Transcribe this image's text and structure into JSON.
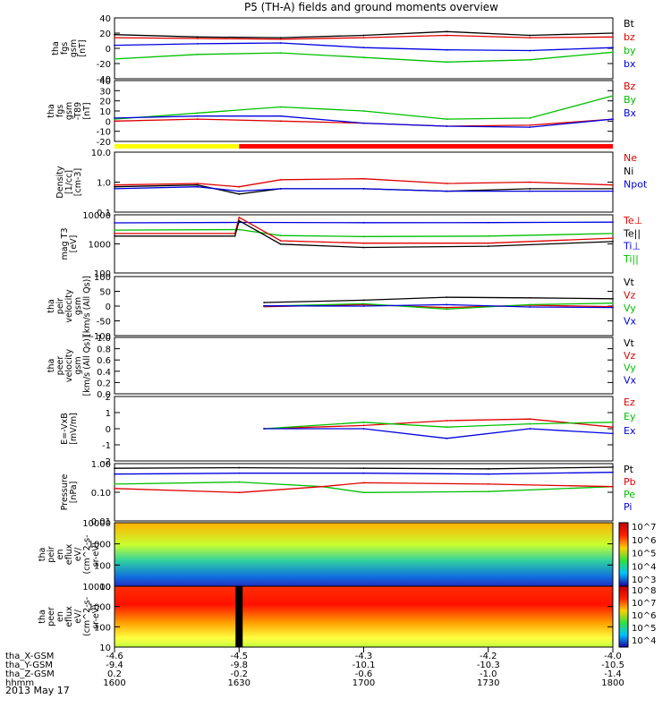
{
  "title": "P5 (TH-A) fields and ground moments overview",
  "date": "2013 May 17",
  "time_axis": {
    "hhmm": [
      "1600",
      "1630",
      "1700",
      "1730",
      "1800"
    ],
    "rows": [
      {
        "label": "tha_X-GSM",
        "values": [
          "-4.6",
          "-4.5",
          "-4.3",
          "-4.2",
          "-4.0"
        ]
      },
      {
        "label": "tha_Y-GSM",
        "values": [
          "-9.4",
          "-9.8",
          "-10.1",
          "-10.3",
          "-10.5"
        ]
      },
      {
        "label": "tha_Z-GSM",
        "values": [
          "0.2",
          "-0.2",
          "-0.6",
          "-1.0",
          "-1.4"
        ]
      },
      {
        "label": "hhmm",
        "values": [
          "1600",
          "1630",
          "1700",
          "1730",
          "1800"
        ]
      }
    ]
  },
  "panels": [
    {
      "id": "fgs",
      "ylabel": [
        "tha",
        "fgs",
        "gsm",
        "[nT]"
      ],
      "ticks": [
        "40",
        "20",
        "0",
        "-20",
        "-40"
      ],
      "legend": [
        {
          "t": "Bt",
          "c": "#000000"
        },
        {
          "t": "bz",
          "c": "#e00000"
        },
        {
          "t": "by",
          "c": "#00c000"
        },
        {
          "t": "bx",
          "c": "#0000e0"
        }
      ]
    },
    {
      "id": "fgs-t89",
      "ylabel": [
        "tha",
        "fgs",
        "gsm",
        "-T89",
        "[nT]"
      ],
      "ticks": [
        "40",
        "30",
        "20",
        "10",
        "0",
        "-10",
        "-20"
      ],
      "legend": [
        {
          "t": "Bz",
          "c": "#e00000"
        },
        {
          "t": "By",
          "c": "#00c000"
        },
        {
          "t": "Bx",
          "c": "#0000e0"
        }
      ]
    },
    {
      "id": "density",
      "ylabel": [
        "Density",
        "[1/cc]",
        "[cm-3]"
      ],
      "ticks": [
        "10.0",
        "1.0",
        "0.1"
      ],
      "legend": [
        {
          "t": "Ne",
          "c": "#e00000"
        },
        {
          "t": "Ni",
          "c": "#000000"
        },
        {
          "t": "Npot",
          "c": "#0000e0"
        }
      ]
    },
    {
      "id": "temp",
      "ylabel": [
        "mag T3",
        "[eV]"
      ],
      "ticks": [
        "10000",
        "1000",
        "100"
      ],
      "legend": [
        {
          "t": "Te⊥",
          "c": "#e00000"
        },
        {
          "t": "Te||",
          "c": "#000000"
        },
        {
          "t": "Ti⊥",
          "c": "#0000e0"
        },
        {
          "t": "Ti||",
          "c": "#00c000"
        }
      ]
    },
    {
      "id": "peir-vel",
      "ylabel": [
        "tha",
        "peir",
        "velocity",
        "gsm",
        "[km/s (All Qs)]"
      ],
      "ticks": [
        "100",
        "50",
        "0",
        "-50",
        "-100"
      ],
      "legend": [
        {
          "t": "Vt",
          "c": "#000000"
        },
        {
          "t": "Vz",
          "c": "#e00000"
        },
        {
          "t": "Vy",
          "c": "#00c000"
        },
        {
          "t": "Vx",
          "c": "#0000e0"
        }
      ]
    },
    {
      "id": "peer-vel",
      "ylabel": [
        "tha",
        "peer",
        "velocity",
        "gsm",
        "[km/s (All Qs)]"
      ],
      "ticks": [
        "1.0",
        "0.8",
        "0.6",
        "0.4",
        "0.2",
        "0.0"
      ],
      "legend": [
        {
          "t": "Vt",
          "c": "#000000"
        },
        {
          "t": "Vz",
          "c": "#e00000"
        },
        {
          "t": "Vy",
          "c": "#00c000"
        },
        {
          "t": "Vx",
          "c": "#0000e0"
        }
      ]
    },
    {
      "id": "efield",
      "ylabel": [
        "E=-VxB",
        "[mV/m]"
      ],
      "ticks": [
        "2",
        "1",
        "0",
        "-1",
        "-2"
      ],
      "legend": [
        {
          "t": "Ez",
          "c": "#e00000"
        },
        {
          "t": "Ey",
          "c": "#00c000"
        },
        {
          "t": "Ex",
          "c": "#0000e0"
        }
      ]
    },
    {
      "id": "pressure",
      "ylabel": [
        "Pressure",
        "[nPa]"
      ],
      "ticks": [
        "1.00",
        "0.10",
        "0.01"
      ],
      "legend": [
        {
          "t": "Pt",
          "c": "#000000"
        },
        {
          "t": "Pb",
          "c": "#e00000"
        },
        {
          "t": "Pe",
          "c": "#00c000"
        },
        {
          "t": "Pi",
          "c": "#0000e0"
        }
      ]
    },
    {
      "id": "peir-spec",
      "ylabel": [
        "tha",
        "peir",
        "en",
        "eflux",
        "eV/",
        "(cm^2-s-",
        "sr-eV)"
      ],
      "ticks": [
        "10000",
        "1000",
        "100",
        "10"
      ],
      "colorbar": [
        "10^7",
        "10^6",
        "10^5",
        "10^4",
        "10^3"
      ]
    },
    {
      "id": "peer-spec",
      "ylabel": [
        "tha",
        "peer",
        "en",
        "eflux",
        "eV/",
        "(cm^2-s-",
        "sr-eV)"
      ],
      "ticks": [
        "10000",
        "1000",
        "100",
        "10"
      ],
      "colorbar": [
        "10^8",
        "10^7",
        "10^6",
        "10^5",
        "10^4"
      ]
    }
  ],
  "chart_data": {
    "type": "line",
    "x_range_hhmm": [
      "1600",
      "1800"
    ],
    "panels": {
      "fgs": {
        "ylim": [
          -40,
          40
        ],
        "series": [
          {
            "name": "Bt",
            "color": "#000000",
            "x": [
              0,
              20,
              40,
              60,
              80,
              100,
              120
            ],
            "y": [
              18,
              15,
              14,
              17,
              22,
              17,
              20
            ]
          },
          {
            "name": "bz",
            "color": "#e00000",
            "x": [
              0,
              20,
              40,
              60,
              80,
              100,
              120
            ],
            "y": [
              14,
              13,
              12,
              14,
              17,
              14,
              15
            ]
          },
          {
            "name": "by",
            "color": "#00c000",
            "x": [
              0,
              20,
              40,
              60,
              80,
              100,
              120
            ],
            "y": [
              -14,
              -8,
              -6,
              -12,
              -18,
              -15,
              -5
            ]
          },
          {
            "name": "bx",
            "color": "#0000e0",
            "x": [
              0,
              20,
              40,
              60,
              80,
              100,
              120
            ],
            "y": [
              4,
              6,
              7,
              1,
              -2,
              -3,
              1
            ]
          }
        ]
      },
      "fgs-t89": {
        "ylim": [
          -20,
          40
        ],
        "series": [
          {
            "name": "Bz",
            "color": "#e00000",
            "x": [
              0,
              20,
              40,
              60,
              80,
              100,
              120
            ],
            "y": [
              0,
              2,
              0,
              -2,
              -5,
              -4,
              2
            ]
          },
          {
            "name": "By",
            "color": "#00c000",
            "x": [
              0,
              20,
              40,
              60,
              80,
              100,
              120
            ],
            "y": [
              2,
              8,
              14,
              10,
              2,
              3,
              25
            ]
          },
          {
            "name": "Bx",
            "color": "#0000e0",
            "x": [
              0,
              20,
              40,
              60,
              80,
              100,
              120
            ],
            "y": [
              3,
              5,
              5,
              -2,
              -5,
              -6,
              2
            ]
          }
        ]
      },
      "density": {
        "ylim": [
          0.1,
          10
        ],
        "log": true,
        "series": [
          {
            "name": "Ne",
            "color": "#e00000",
            "x": [
              0,
              20,
              30,
              40,
              60,
              80,
              100,
              120
            ],
            "y": [
              0.8,
              0.9,
              0.7,
              1.2,
              1.3,
              0.9,
              1.0,
              0.8
            ]
          },
          {
            "name": "Ni",
            "color": "#000000",
            "x": [
              0,
              20,
              30,
              40,
              60,
              80,
              100,
              120
            ],
            "y": [
              0.7,
              0.8,
              0.4,
              0.6,
              0.6,
              0.5,
              0.6,
              0.6
            ]
          },
          {
            "name": "Npot",
            "color": "#0000e0",
            "x": [
              0,
              20,
              30,
              40,
              60,
              80,
              100,
              120
            ],
            "y": [
              0.6,
              0.7,
              0.5,
              0.6,
              0.6,
              0.5,
              0.5,
              0.5
            ]
          }
        ]
      },
      "temp": {
        "ylim": [
          100,
          15000
        ],
        "log": true,
        "series": [
          {
            "name": "Ti⊥",
            "color": "#0000e0",
            "x": [
              0,
              30,
              60,
              90,
              120
            ],
            "y": [
              7500,
              7800,
              7600,
              7700,
              8000
            ]
          },
          {
            "name": "Ti||",
            "color": "#00c000",
            "x": [
              0,
              30,
              40,
              60,
              90,
              120
            ],
            "y": [
              4000,
              4200,
              2500,
              2300,
              2400,
              3000
            ]
          },
          {
            "name": "Te⊥",
            "color": "#e00000",
            "x": [
              0,
              29,
              30,
              40,
              60,
              90,
              120
            ],
            "y": [
              3000,
              3000,
              12000,
              1600,
              1300,
              1300,
              2000
            ]
          },
          {
            "name": "Te||",
            "color": "#000000",
            "x": [
              0,
              29,
              30,
              40,
              60,
              90,
              120
            ],
            "y": [
              2400,
              2400,
              9000,
              1200,
              900,
              1000,
              1500
            ]
          }
        ]
      },
      "peir-vel": {
        "ylim": [
          -100,
          100
        ],
        "series": [
          {
            "name": "Vt",
            "color": "#000000",
            "x": [
              36,
              60,
              80,
              100,
              120
            ],
            "y": [
              12,
              20,
              30,
              28,
              25
            ]
          },
          {
            "name": "Vz",
            "color": "#e00000",
            "x": [
              36,
              60,
              80,
              100,
              120
            ],
            "y": [
              -2,
              5,
              -5,
              3,
              -2
            ]
          },
          {
            "name": "Vy",
            "color": "#00c000",
            "x": [
              36,
              60,
              80,
              100,
              120
            ],
            "y": [
              0,
              8,
              -10,
              5,
              10
            ]
          },
          {
            "name": "Vx",
            "color": "#0000e0",
            "x": [
              36,
              60,
              80,
              100,
              120
            ],
            "y": [
              1,
              0,
              5,
              -3,
              -5
            ]
          }
        ]
      },
      "peer-vel": {
        "ylim": [
          0,
          1
        ],
        "series": []
      },
      "efield": {
        "ylim": [
          -2,
          2
        ],
        "series": [
          {
            "name": "Ez",
            "color": "#e00000",
            "x": [
              36,
              60,
              80,
              100,
              120
            ],
            "y": [
              0,
              0.2,
              0.5,
              0.6,
              0.1
            ]
          },
          {
            "name": "Ey",
            "color": "#00c000",
            "x": [
              36,
              60,
              80,
              100,
              120
            ],
            "y": [
              0,
              0.4,
              0.1,
              0.3,
              0.4
            ]
          },
          {
            "name": "Ex",
            "color": "#0000e0",
            "x": [
              36,
              60,
              80,
              100,
              120
            ],
            "y": [
              0,
              0,
              -0.6,
              0,
              -0.3
            ]
          }
        ]
      },
      "pressure": {
        "ylim": [
          0.01,
          1.5
        ],
        "log": true,
        "series": [
          {
            "name": "Pt",
            "color": "#000000",
            "x": [
              0,
              30,
              60,
              90,
              120
            ],
            "y": [
              1.0,
              1.05,
              1.0,
              0.95,
              1.1
            ]
          },
          {
            "name": "Pi",
            "color": "#0000e0",
            "x": [
              0,
              30,
              60,
              90,
              120
            ],
            "y": [
              0.6,
              0.65,
              0.65,
              0.6,
              0.7
            ]
          },
          {
            "name": "Pe",
            "color": "#00c000",
            "x": [
              0,
              30,
              50,
              60,
              90,
              120
            ],
            "y": [
              0.25,
              0.3,
              0.2,
              0.12,
              0.13,
              0.2
            ]
          },
          {
            "name": "Pb",
            "color": "#e00000",
            "x": [
              0,
              30,
              50,
              60,
              90,
              120
            ],
            "y": [
              0.17,
              0.12,
              0.2,
              0.28,
              0.25,
              0.2
            ]
          }
        ]
      }
    }
  }
}
